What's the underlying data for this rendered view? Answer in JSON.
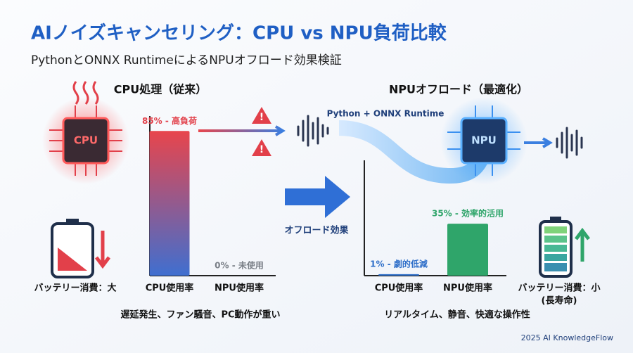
{
  "title": "AIノイズキャンセリング：CPU vs NPU負荷比較",
  "subtitle": "PythonとONNX RuntimeによるNPUオフロード効果検証",
  "chart_data": [
    {
      "type": "bar",
      "title": "CPU処理（従来）",
      "categories": [
        "CPU使用率",
        "NPU使用率"
      ],
      "values": [
        85,
        0
      ],
      "value_labels": [
        "85% - 高負荷",
        "0% - 未使用"
      ],
      "colors": [
        "#e2404a",
        "#7a7f87"
      ],
      "ylim": [
        0,
        100
      ],
      "caption": "遅延発生、ファン騒音、PC動作が重い"
    },
    {
      "type": "bar",
      "title": "NPUオフロード（最適化）",
      "categories": [
        "CPU使用率",
        "NPU使用率"
      ],
      "values": [
        1,
        35
      ],
      "value_labels": [
        "1% - 劇的低減",
        "35% - 効率的活用"
      ],
      "colors": [
        "#2f6fc9",
        "#2fa56a"
      ],
      "ylim": [
        0,
        100
      ],
      "caption": "リアルタイム、静音、快適な操作性"
    }
  ],
  "labels": {
    "cpu_chip": "CPU",
    "npu_chip": "NPU",
    "battery_left": "バッテリー消費：大",
    "battery_right": "バッテリー消費：小",
    "battery_right_note": "(長寿命)",
    "pipeline": "Python + ONNX Runtime",
    "offload": "オフロード効果",
    "footer": "2025 AI KnowledgeFlow"
  }
}
